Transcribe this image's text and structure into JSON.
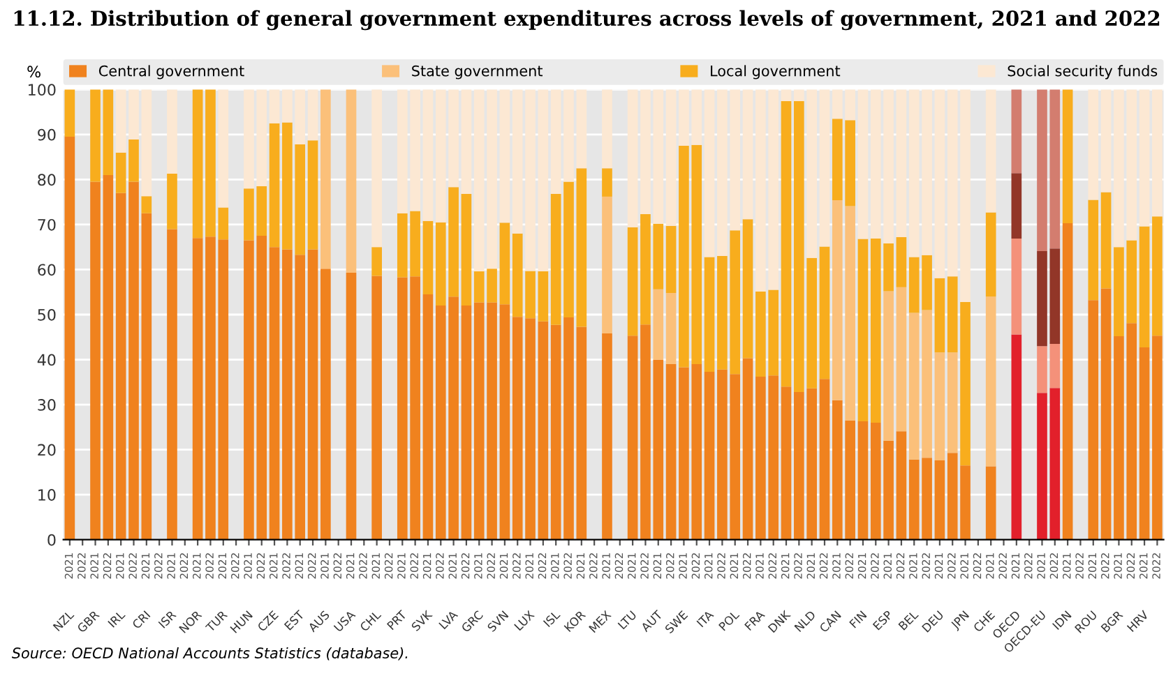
{
  "chart_data": {
    "type": "bar",
    "stacked": true,
    "title": "11.12. Distribution of general government expenditures across levels of government, 2021 and 2022",
    "ylabel": "%",
    "categories": [
      "2021",
      "2022",
      "2021",
      "2022",
      "2021",
      "2022",
      "2021",
      "2022",
      "2021",
      "2022",
      "2021",
      "2022",
      "2021",
      "2022",
      "2021",
      "2022",
      "2021",
      "2022",
      "2021",
      "2022",
      "2021",
      "2022",
      "2021",
      "2022",
      "2021",
      "2022",
      "2021",
      "2022",
      "2021",
      "2022",
      "2021",
      "2022",
      "2021",
      "2022",
      "2021",
      "2022",
      "2021",
      "2022",
      "2021",
      "2022",
      "2021",
      "2022",
      "2021",
      "2022",
      "2021",
      "2022",
      "2021",
      "2022",
      "2021",
      "2022",
      "2021",
      "2022",
      "2021",
      "2022",
      "2021",
      "2022",
      "2021",
      "2022",
      "2021",
      "2022",
      "2021",
      "2022",
      "2021",
      "2022",
      "2021",
      "2022",
      "2021",
      "2022",
      "2021",
      "2022",
      "2021",
      "2022",
      "2021",
      "2022",
      "2021",
      "2022",
      "2021",
      "2022",
      "2021",
      "2022",
      "2021",
      "2022",
      "2021",
      "2022",
      "2021",
      "2022"
    ],
    "series": [
      {
        "name": "Central government",
        "color": "#f0821e",
        "values": [
          89.5,
          null,
          79.5,
          81,
          77,
          79.5,
          72.5,
          null,
          69,
          null,
          67,
          67.3,
          66.7,
          null,
          66.5,
          67.5,
          65,
          64.5,
          63.3,
          64.5,
          60.2,
          null,
          59.3,
          null,
          58.6,
          null,
          58.3,
          58.5,
          54.5,
          52,
          54,
          52,
          52.7,
          52.7,
          52.3,
          49.5,
          49.2,
          48.5,
          47.7,
          49.4,
          47.3,
          null,
          45.8,
          null,
          45.3,
          47.8,
          40,
          39,
          38.3,
          39,
          37.3,
          37.8,
          36.8,
          40.3,
          36.2,
          36.5,
          34,
          32.8,
          33.6,
          35.7,
          31,
          26.5,
          26.3,
          26,
          22,
          24.1,
          17.8,
          18.2,
          17.6,
          19.3,
          16.5,
          null,
          16.3,
          null,
          45.6,
          null,
          32.6,
          33.7,
          70.3,
          null,
          53.2,
          55.8,
          45.2,
          48.1,
          42.7,
          45.3
        ],
        "colors": [
          "#f0821e",
          "#f0821e",
          "#f0821e",
          "#f0821e",
          "#f0821e",
          "#f0821e",
          "#f0821e",
          "#f0821e",
          "#f0821e",
          "#f0821e",
          "#f0821e",
          "#f0821e",
          "#f0821e",
          "#f0821e",
          "#f0821e",
          "#f0821e",
          "#f0821e",
          "#f0821e",
          "#f0821e",
          "#f0821e",
          "#f0821e",
          "#f0821e",
          "#f0821e",
          "#f0821e",
          "#f0821e",
          "#f0821e",
          "#f0821e",
          "#f0821e",
          "#f0821e",
          "#f0821e",
          "#f0821e",
          "#f0821e",
          "#f0821e",
          "#f0821e",
          "#f0821e",
          "#f0821e",
          "#f0821e",
          "#f0821e",
          "#f0821e",
          "#f0821e",
          "#f0821e",
          "#f0821e",
          "#f0821e",
          "#f0821e",
          "#f0821e",
          "#f0821e",
          "#f0821e",
          "#f0821e",
          "#f0821e",
          "#f0821e",
          "#f0821e",
          "#f0821e",
          "#f0821e",
          "#f0821e",
          "#f0821e",
          "#f0821e",
          "#f0821e",
          "#f0821e",
          "#f0821e",
          "#f0821e",
          "#f0821e",
          "#f0821e",
          "#f0821e",
          "#f0821e",
          "#f0821e",
          "#f0821e",
          "#f0821e",
          "#f0821e",
          "#f0821e",
          "#f0821e",
          "#f0821e",
          "#f0821e",
          "#f0821e",
          "#f0821e",
          "#e2202b",
          "#e2202b",
          "#e2202b",
          "#e2202b",
          "#f0821e",
          "#f0821e",
          "#f0821e",
          "#f0821e",
          "#f0821e",
          "#f0821e",
          "#f0821e",
          "#f0821e"
        ]
      },
      {
        "name": "State government",
        "color": "#fbc07a",
        "values": [
          0,
          null,
          0,
          0,
          0,
          0,
          0,
          null,
          0,
          null,
          0,
          0,
          0,
          null,
          0,
          0,
          0,
          0,
          0,
          0,
          39.8,
          null,
          40.7,
          null,
          0,
          null,
          0,
          0,
          0,
          0,
          0,
          0,
          0,
          0,
          0,
          0,
          0,
          0,
          0,
          0,
          0,
          null,
          30.4,
          null,
          0,
          0,
          15.6,
          15.8,
          0,
          0,
          0,
          0,
          0,
          0,
          0,
          0,
          0,
          0,
          0,
          0,
          44.4,
          47.6,
          0,
          0,
          33.2,
          32,
          32.6,
          32.8,
          24,
          22.3,
          0,
          null,
          37.7,
          null,
          21.3,
          null,
          10.4,
          9.8,
          0,
          null,
          0,
          0,
          0,
          0,
          0,
          0
        ],
        "colors": [
          "#fbc07a",
          "#fbc07a",
          "#fbc07a",
          "#fbc07a",
          "#fbc07a",
          "#fbc07a",
          "#fbc07a",
          "#fbc07a",
          "#fbc07a",
          "#fbc07a",
          "#fbc07a",
          "#fbc07a",
          "#fbc07a",
          "#fbc07a",
          "#fbc07a",
          "#fbc07a",
          "#fbc07a",
          "#fbc07a",
          "#fbc07a",
          "#fbc07a",
          "#fbc07a",
          "#fbc07a",
          "#fbc07a",
          "#fbc07a",
          "#fbc07a",
          "#fbc07a",
          "#fbc07a",
          "#fbc07a",
          "#fbc07a",
          "#fbc07a",
          "#fbc07a",
          "#fbc07a",
          "#fbc07a",
          "#fbc07a",
          "#fbc07a",
          "#fbc07a",
          "#fbc07a",
          "#fbc07a",
          "#fbc07a",
          "#fbc07a",
          "#fbc07a",
          "#fbc07a",
          "#fbc07a",
          "#fbc07a",
          "#fbc07a",
          "#fbc07a",
          "#fbc07a",
          "#fbc07a",
          "#fbc07a",
          "#fbc07a",
          "#fbc07a",
          "#fbc07a",
          "#fbc07a",
          "#fbc07a",
          "#fbc07a",
          "#fbc07a",
          "#fbc07a",
          "#fbc07a",
          "#fbc07a",
          "#fbc07a",
          "#fbc07a",
          "#fbc07a",
          "#fbc07a",
          "#fbc07a",
          "#fbc07a",
          "#fbc07a",
          "#fbc07a",
          "#fbc07a",
          "#fbc07a",
          "#fbc07a",
          "#fbc07a",
          "#fbc07a",
          "#fbc07a",
          "#fbc07a",
          "#f4917a",
          "#f4917a",
          "#f4917a",
          "#f4917a",
          "#fbc07a",
          "#fbc07a",
          "#fbc07a",
          "#fbc07a",
          "#fbc07a",
          "#fbc07a",
          "#fbc07a",
          "#fbc07a"
        ]
      },
      {
        "name": "Local government",
        "color": "#f8ad1d",
        "values": [
          10.5,
          null,
          20.5,
          19,
          9,
          9.4,
          3.8,
          null,
          12.3,
          null,
          33,
          32.7,
          7.1,
          null,
          11.5,
          11,
          27.5,
          28.2,
          24.5,
          24.2,
          0,
          null,
          0,
          null,
          6.4,
          null,
          14.2,
          14.5,
          16.3,
          18.5,
          24.3,
          24.8,
          6.9,
          7.5,
          18.1,
          18.5,
          10.5,
          11.1,
          29.1,
          30.1,
          35.2,
          null,
          6.3,
          null,
          24.1,
          24.5,
          14.6,
          14.9,
          49.2,
          48.7,
          25.5,
          25.2,
          31.9,
          30.9,
          18.9,
          19,
          63.4,
          64.6,
          29,
          29.4,
          18.1,
          19.1,
          40.5,
          40.9,
          10.6,
          11.1,
          12.4,
          12.2,
          16.5,
          16.9,
          36.3,
          null,
          18.7,
          null,
          14.5,
          null,
          21.1,
          21.2,
          29.7,
          null,
          22.3,
          21.4,
          19.8,
          18.4,
          26.9,
          26.5
        ],
        "colors": [
          "#f8ad1d",
          "#f8ad1d",
          "#f8ad1d",
          "#f8ad1d",
          "#f8ad1d",
          "#f8ad1d",
          "#f8ad1d",
          "#f8ad1d",
          "#f8ad1d",
          "#f8ad1d",
          "#f8ad1d",
          "#f8ad1d",
          "#f8ad1d",
          "#f8ad1d",
          "#f8ad1d",
          "#f8ad1d",
          "#f8ad1d",
          "#f8ad1d",
          "#f8ad1d",
          "#f8ad1d",
          "#f8ad1d",
          "#f8ad1d",
          "#f8ad1d",
          "#f8ad1d",
          "#f8ad1d",
          "#f8ad1d",
          "#f8ad1d",
          "#f8ad1d",
          "#f8ad1d",
          "#f8ad1d",
          "#f8ad1d",
          "#f8ad1d",
          "#f8ad1d",
          "#f8ad1d",
          "#f8ad1d",
          "#f8ad1d",
          "#f8ad1d",
          "#f8ad1d",
          "#f8ad1d",
          "#f8ad1d",
          "#f8ad1d",
          "#f8ad1d",
          "#f8ad1d",
          "#f8ad1d",
          "#f8ad1d",
          "#f8ad1d",
          "#f8ad1d",
          "#f8ad1d",
          "#f8ad1d",
          "#f8ad1d",
          "#f8ad1d",
          "#f8ad1d",
          "#f8ad1d",
          "#f8ad1d",
          "#f8ad1d",
          "#f8ad1d",
          "#f8ad1d",
          "#f8ad1d",
          "#f8ad1d",
          "#f8ad1d",
          "#f8ad1d",
          "#f8ad1d",
          "#f8ad1d",
          "#f8ad1d",
          "#f8ad1d",
          "#f8ad1d",
          "#f8ad1d",
          "#f8ad1d",
          "#f8ad1d",
          "#f8ad1d",
          "#f8ad1d",
          "#f8ad1d",
          "#f8ad1d",
          "#f8ad1d",
          "#923628",
          "#923628",
          "#923628",
          "#923628",
          "#f8ad1d",
          "#f8ad1d",
          "#f8ad1d",
          "#f8ad1d",
          "#f8ad1d",
          "#f8ad1d",
          "#f8ad1d",
          "#f8ad1d"
        ]
      },
      {
        "name": "Social security funds",
        "color": "#fce8d3",
        "values": [
          0,
          null,
          0,
          0,
          14,
          11.1,
          23.7,
          null,
          18.7,
          null,
          0,
          0,
          26.2,
          null,
          22,
          21.5,
          7.5,
          7.3,
          12.2,
          11.3,
          0,
          null,
          0,
          null,
          35,
          null,
          27.5,
          27,
          29.2,
          29.5,
          21.7,
          23.2,
          40.4,
          39.8,
          29.6,
          32,
          40.3,
          40.4,
          23.2,
          20.5,
          17.5,
          null,
          17.5,
          null,
          30.6,
          27.7,
          29.8,
          30.3,
          12.5,
          12.3,
          37.2,
          37,
          31.3,
          28.8,
          44.9,
          44.5,
          2.6,
          2.6,
          37.4,
          34.9,
          6.5,
          6.8,
          33.2,
          33.1,
          34.2,
          32.8,
          37.2,
          36.8,
          41.9,
          41.5,
          47.2,
          null,
          27.3,
          null,
          18.6,
          null,
          35.9,
          35.3,
          0,
          null,
          24.5,
          22.8,
          35,
          33.5,
          30.4,
          28.2
        ],
        "colors": [
          "#fce8d3",
          "#fce8d3",
          "#fce8d3",
          "#fce8d3",
          "#fce8d3",
          "#fce8d3",
          "#fce8d3",
          "#fce8d3",
          "#fce8d3",
          "#fce8d3",
          "#fce8d3",
          "#fce8d3",
          "#fce8d3",
          "#fce8d3",
          "#fce8d3",
          "#fce8d3",
          "#fce8d3",
          "#fce8d3",
          "#fce8d3",
          "#fce8d3",
          "#fce8d3",
          "#fce8d3",
          "#fce8d3",
          "#fce8d3",
          "#fce8d3",
          "#fce8d3",
          "#fce8d3",
          "#fce8d3",
          "#fce8d3",
          "#fce8d3",
          "#fce8d3",
          "#fce8d3",
          "#fce8d3",
          "#fce8d3",
          "#fce8d3",
          "#fce8d3",
          "#fce8d3",
          "#fce8d3",
          "#fce8d3",
          "#fce8d3",
          "#fce8d3",
          "#fce8d3",
          "#fce8d3",
          "#fce8d3",
          "#fce8d3",
          "#fce8d3",
          "#fce8d3",
          "#fce8d3",
          "#fce8d3",
          "#fce8d3",
          "#fce8d3",
          "#fce8d3",
          "#fce8d3",
          "#fce8d3",
          "#fce8d3",
          "#fce8d3",
          "#fce8d3",
          "#fce8d3",
          "#fce8d3",
          "#fce8d3",
          "#fce8d3",
          "#fce8d3",
          "#fce8d3",
          "#fce8d3",
          "#fce8d3",
          "#fce8d3",
          "#fce8d3",
          "#fce8d3",
          "#fce8d3",
          "#fce8d3",
          "#fce8d3",
          "#fce8d3",
          "#fce8d3",
          "#fce8d3",
          "#d37d6f",
          "#d37d6f",
          "#d37d6f",
          "#d37d6f",
          "#fce8d3",
          "#fce8d3",
          "#fce8d3",
          "#fce8d3",
          "#fce8d3",
          "#fce8d3",
          "#fce8d3",
          "#fce8d3"
        ]
      }
    ],
    "ylim": [
      0,
      100
    ],
    "yticks": [
      0,
      10,
      20,
      30,
      40,
      50,
      60,
      70,
      80,
      90,
      100
    ],
    "grid": "y",
    "legend": "top",
    "annotations": [
      "Source: OECD National Accounts Statistics (database).",
      "NZL",
      "GBR",
      "IRL",
      "CRI",
      "ISR",
      "NOR",
      "TUR",
      "HUN",
      "CZE",
      "EST",
      "AUS",
      "USA",
      "CHL",
      "PRT",
      "SVK",
      "LVA",
      "GRC",
      "SVN",
      "LUX",
      "ISL",
      "KOR",
      "MEX",
      "LTU",
      "AUT",
      "SWE",
      "ITA",
      "POL",
      "FRA",
      "DNK",
      "NLD",
      "CAN",
      "FIN",
      "ESP",
      "BEL",
      "DEU",
      "JPN",
      "CHE",
      "OECD",
      "OECD-EU",
      "IDN",
      "ROU",
      "BGR",
      "HRV"
    ]
  }
}
